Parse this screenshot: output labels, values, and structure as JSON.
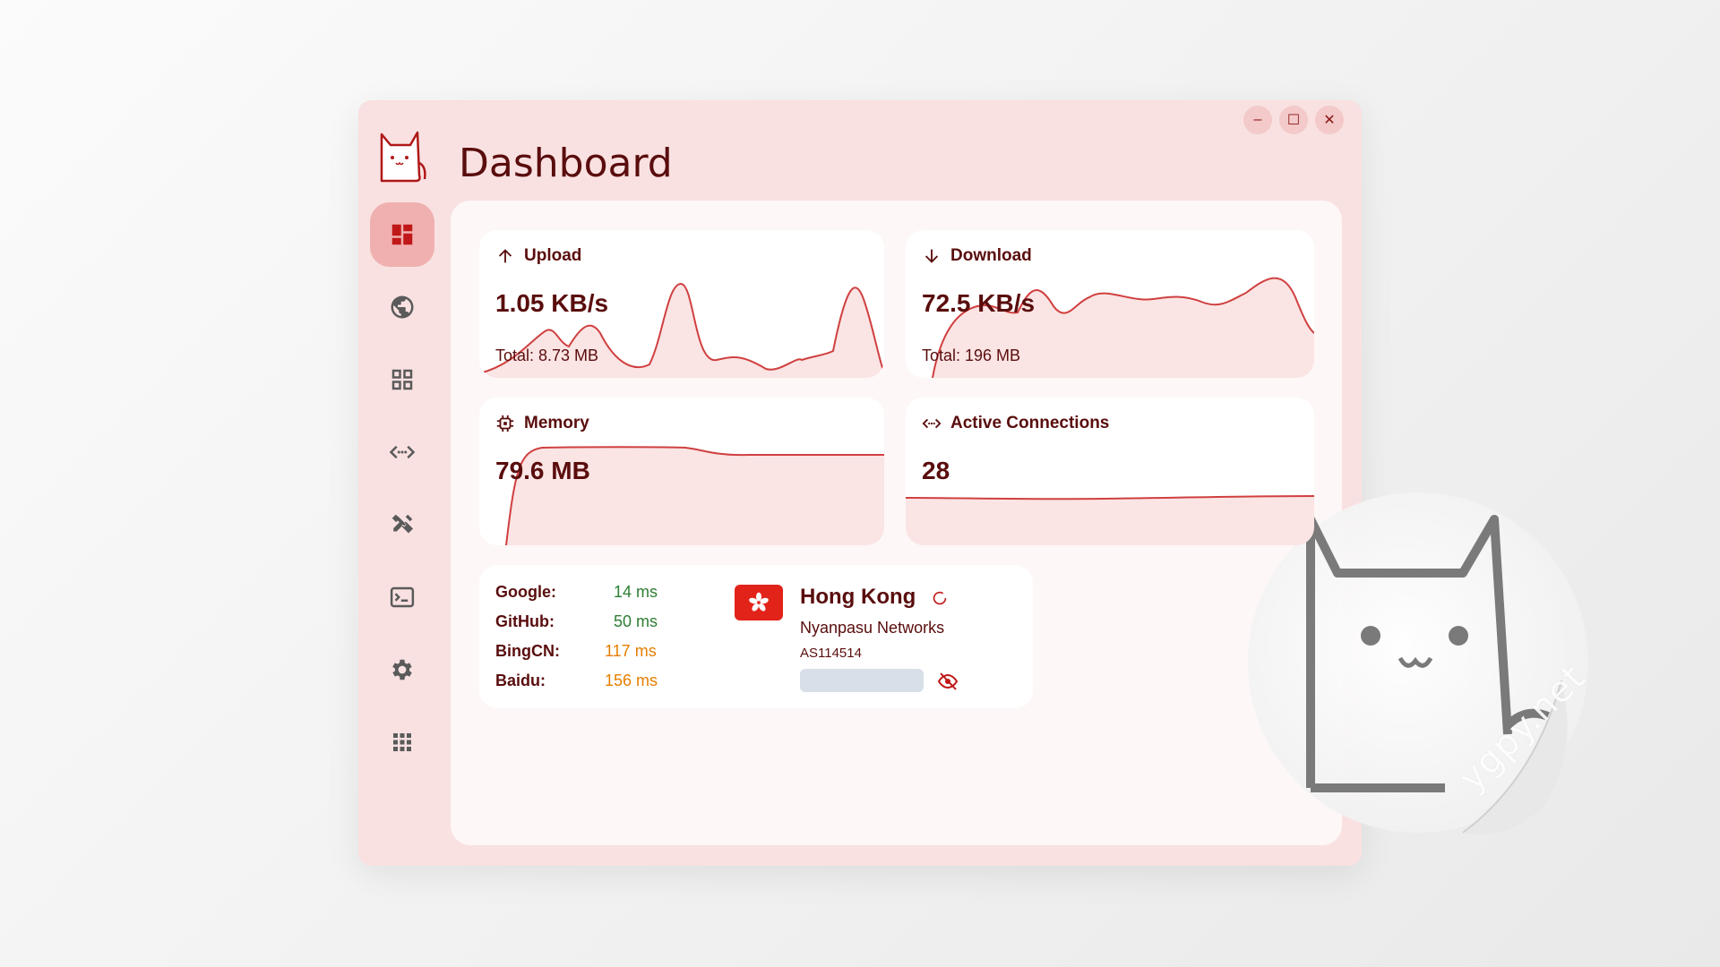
{
  "window": {
    "title": "Dashboard",
    "controls": {
      "minimize": "–",
      "maximize": "☐",
      "close": "✕"
    },
    "accent": "#c01818"
  },
  "sidebar": {
    "items": [
      {
        "name": "dashboard",
        "icon": "dashboard-icon",
        "active": true
      },
      {
        "name": "proxies",
        "icon": "globe-icon",
        "active": false
      },
      {
        "name": "profiles",
        "icon": "grid-icon",
        "active": false
      },
      {
        "name": "connections",
        "icon": "connections-icon",
        "active": false
      },
      {
        "name": "rules",
        "icon": "tools-icon",
        "active": false
      },
      {
        "name": "logs",
        "icon": "terminal-icon",
        "active": false
      },
      {
        "name": "settings",
        "icon": "gear-icon",
        "active": false
      },
      {
        "name": "providers",
        "icon": "apps-icon",
        "active": false
      }
    ]
  },
  "cards": {
    "upload": {
      "label": "Upload",
      "value": "1.05 KB/s",
      "total": "Total: 8.73 MB",
      "icon": "arrow-up-icon"
    },
    "download": {
      "label": "Download",
      "value": "72.5 KB/s",
      "total": "Total: 196 MB",
      "icon": "arrow-down-icon"
    },
    "memory": {
      "label": "Memory",
      "value": "79.6 MB",
      "icon": "chip-icon"
    },
    "connections": {
      "label": "Active Connections",
      "value": "28",
      "icon": "connections-icon"
    }
  },
  "latency": [
    {
      "site": "Google:",
      "ms": "14 ms",
      "status": "good"
    },
    {
      "site": "GitHub:",
      "ms": "50 ms",
      "status": "good"
    },
    {
      "site": "BingCN:",
      "ms": "117 ms",
      "status": "slow"
    },
    {
      "site": "Baidu:",
      "ms": "156 ms",
      "status": "slow"
    }
  ],
  "ip_info": {
    "location": "Hong Kong",
    "isp": "Nyanpasu Networks",
    "asn": "AS114514",
    "flag_icon": "hong-kong-flag-icon"
  },
  "watermark": "ygpy.net"
}
